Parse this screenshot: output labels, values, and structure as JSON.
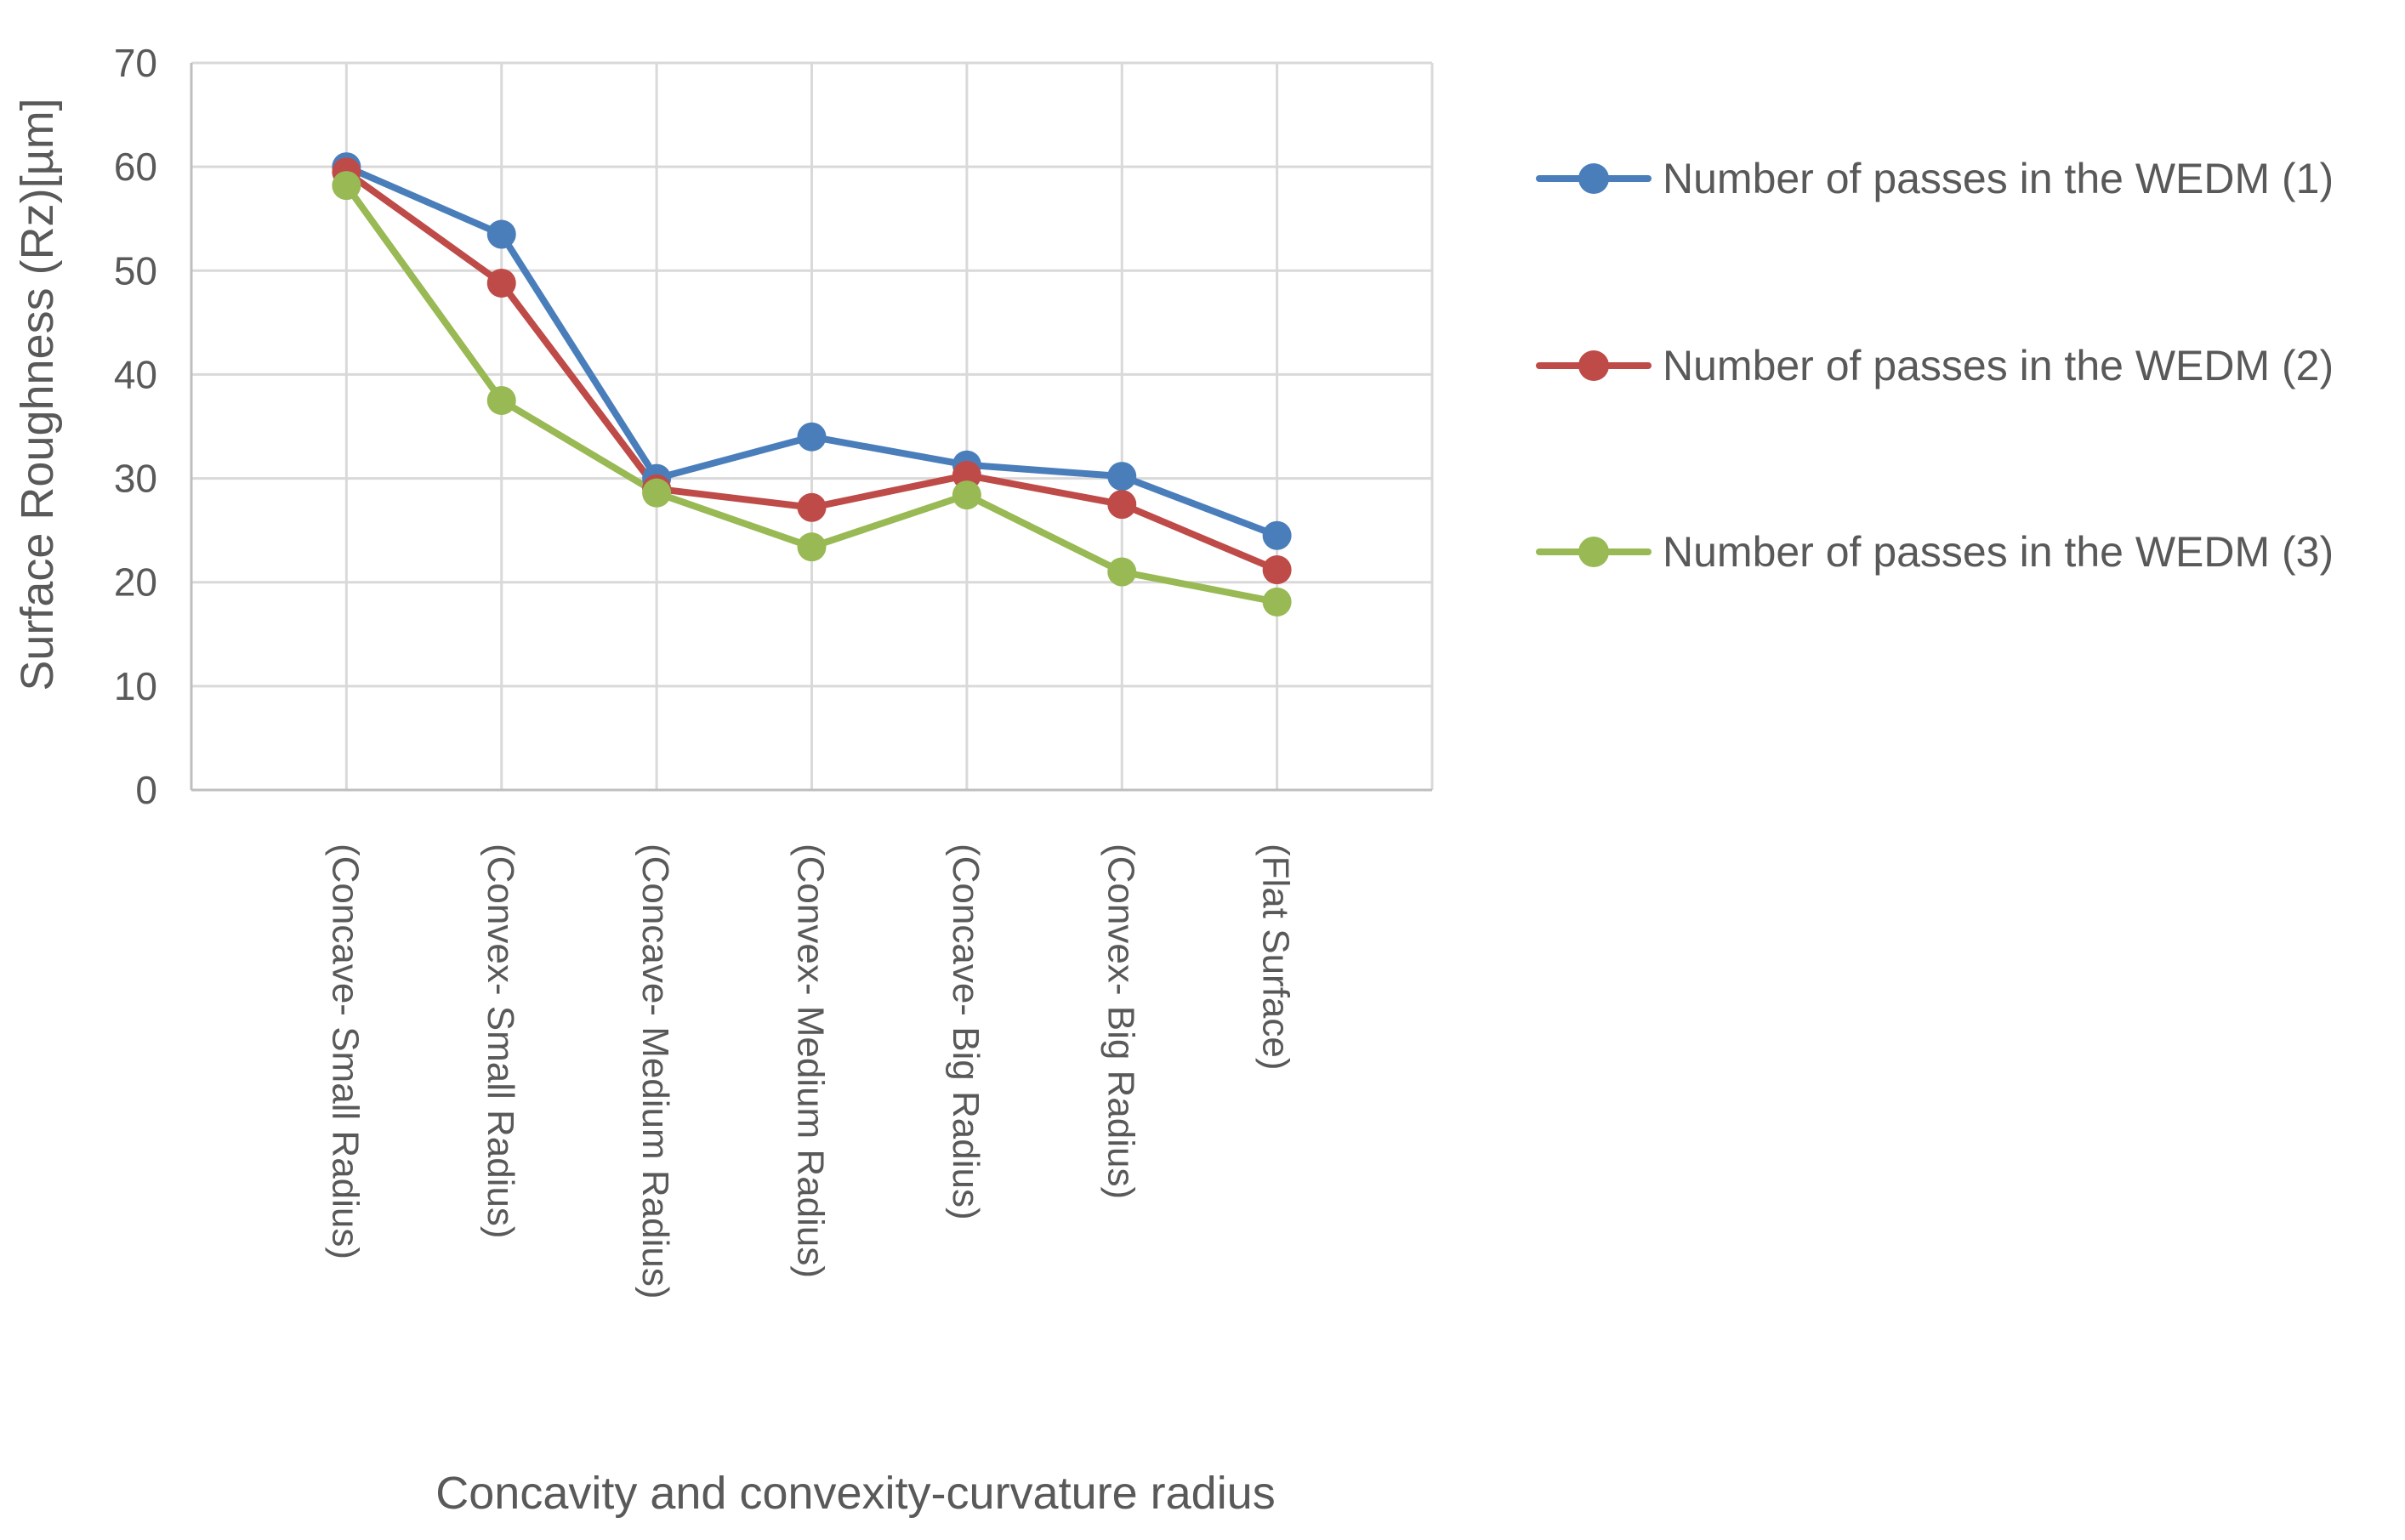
{
  "chart_data": {
    "type": "line",
    "title": "",
    "xlabel": "Concavity and convexity-curvature radius",
    "ylabel": "Surface Roughness (Rz)[µm]",
    "ylim": [
      0,
      70
    ],
    "yticks": [
      0,
      10,
      20,
      30,
      40,
      50,
      60,
      70
    ],
    "grid": true,
    "legend_position": "right",
    "categories": [
      "(Concave- Small Radius)",
      "(Convex- Small Radius)",
      "(Concave- Medium Radius)",
      "(Convex- Medium Radius)",
      "(Concave- Big Radius)",
      "(Convex- Big Radius)",
      "(Flat Surface)"
    ],
    "series": [
      {
        "name": "Number of passes in the WEDM (1)",
        "color": "#4a7ebb",
        "values": [
          60.0,
          53.5,
          30.0,
          34.0,
          31.3,
          30.2,
          24.5
        ]
      },
      {
        "name": "Number of passes in the WEDM (2)",
        "color": "#be4b48",
        "values": [
          59.5,
          48.8,
          29.0,
          27.2,
          30.3,
          27.5,
          21.2
        ]
      },
      {
        "name": "Number of passes in the WEDM (3)",
        "color": "#98b954",
        "values": [
          58.2,
          37.5,
          28.6,
          23.4,
          28.4,
          21.0,
          18.1
        ]
      }
    ]
  }
}
